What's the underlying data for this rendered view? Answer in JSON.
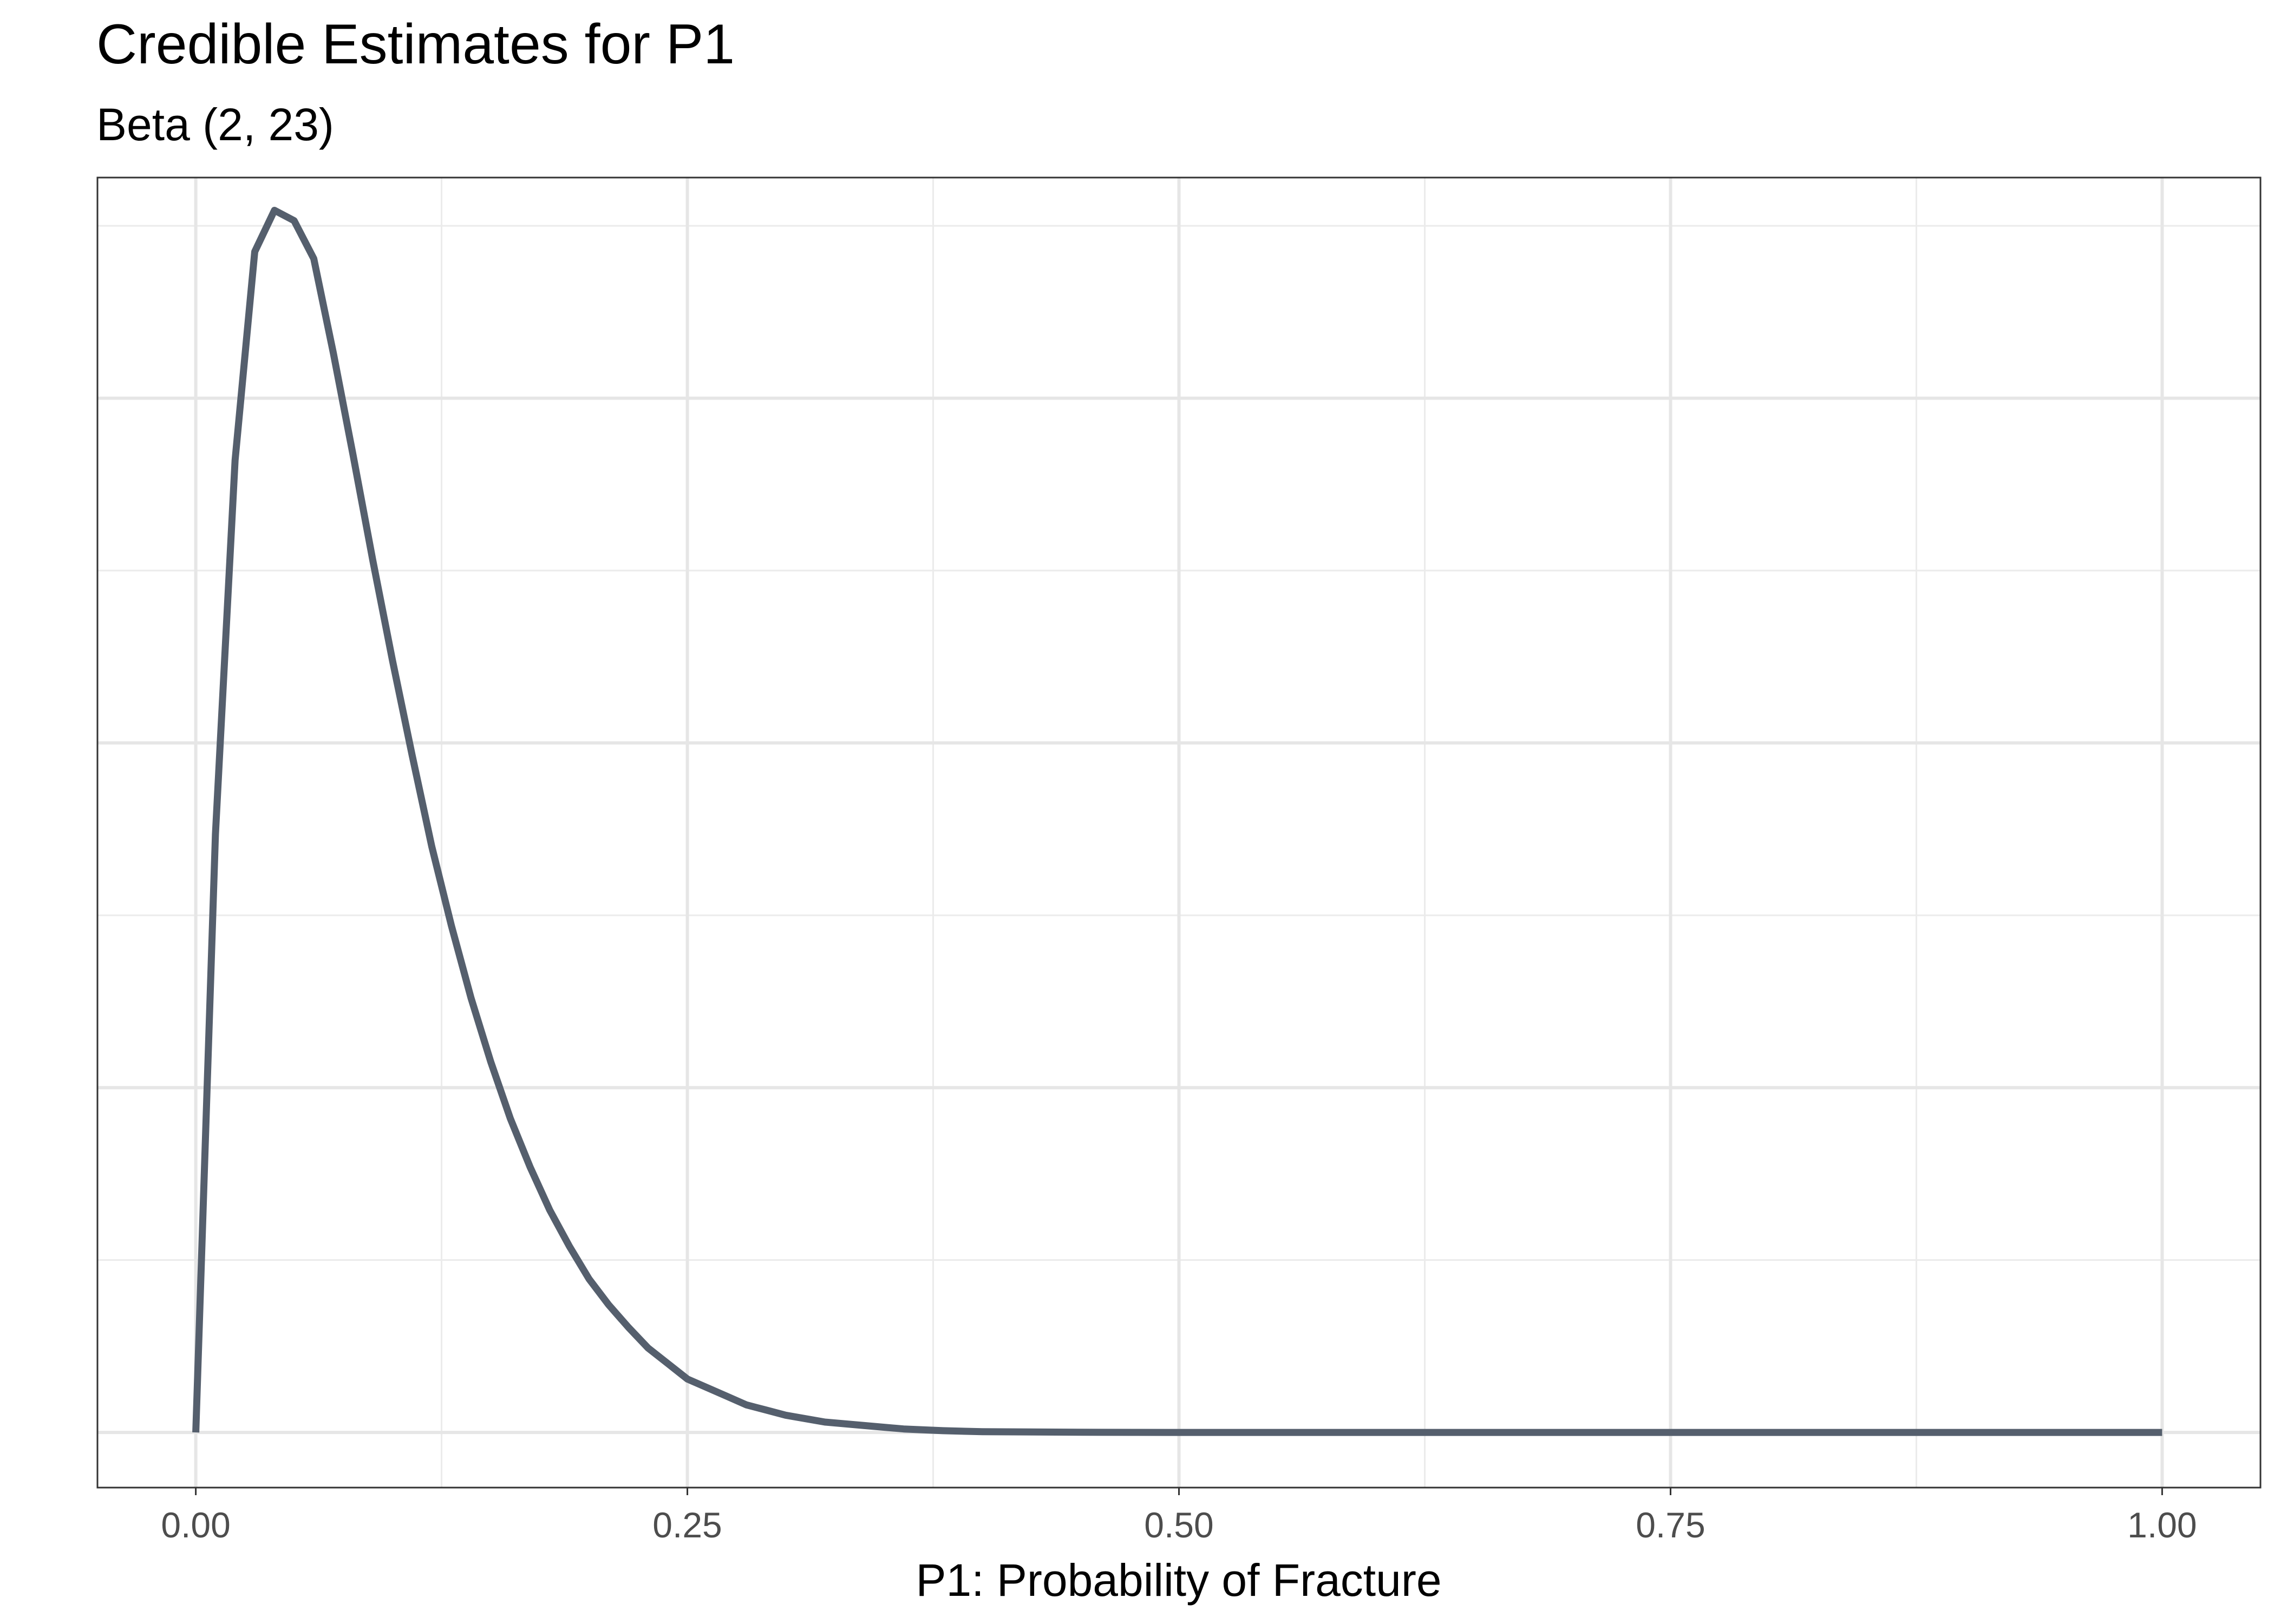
{
  "chart_data": {
    "type": "line",
    "title": "Credible Estimates for P1",
    "subtitle": "Beta (2, 23)",
    "xlabel": "P1: Probability of Fracture",
    "ylabel": "",
    "xlim": [
      -0.05,
      1.05
    ],
    "ylim": [
      -0.32,
      7.28
    ],
    "x_ticks": [
      0.0,
      0.25,
      0.5,
      0.75,
      1.0
    ],
    "x_tick_labels": [
      "0.00",
      "0.25",
      "0.50",
      "0.75",
      "1.00"
    ],
    "y_ticks_major": [
      0,
      2,
      4,
      6
    ],
    "y_ticks_minor": [
      1,
      3,
      5,
      7
    ],
    "show_y_tick_labels": false,
    "grid": true,
    "line_color": "#555f6d",
    "series": [
      {
        "x": [
          0.0,
          0.01,
          0.02,
          0.03,
          0.04,
          0.05,
          0.06,
          0.07,
          0.08,
          0.09,
          0.1,
          0.11,
          0.12,
          0.13,
          0.14,
          0.15,
          0.16,
          0.17,
          0.18,
          0.19,
          0.2,
          0.21,
          0.22,
          0.23,
          0.24,
          0.25,
          0.26,
          0.27,
          0.28,
          0.29,
          0.3,
          0.32,
          0.34,
          0.36,
          0.38,
          0.4,
          0.45,
          0.5,
          0.55,
          0.6,
          0.65,
          0.7,
          0.75,
          0.8,
          0.85,
          0.9,
          0.95,
          1.0
        ],
        "y": [
          0.0,
          3.47,
          5.64,
          6.85,
          7.09,
          7.03,
          6.81,
          6.26,
          5.67,
          5.06,
          4.48,
          3.93,
          3.4,
          2.94,
          2.52,
          2.15,
          1.82,
          1.54,
          1.29,
          1.08,
          0.89,
          0.74,
          0.61,
          0.49,
          0.4,
          0.31,
          0.26,
          0.21,
          0.16,
          0.13,
          0.1,
          0.06,
          0.04,
          0.02,
          0.01,
          0.004,
          0.001,
          0.0,
          0.0,
          0.0,
          0.0,
          0.0,
          0.0,
          0.0,
          0.0,
          0.0,
          0.0,
          0.0
        ]
      }
    ]
  }
}
